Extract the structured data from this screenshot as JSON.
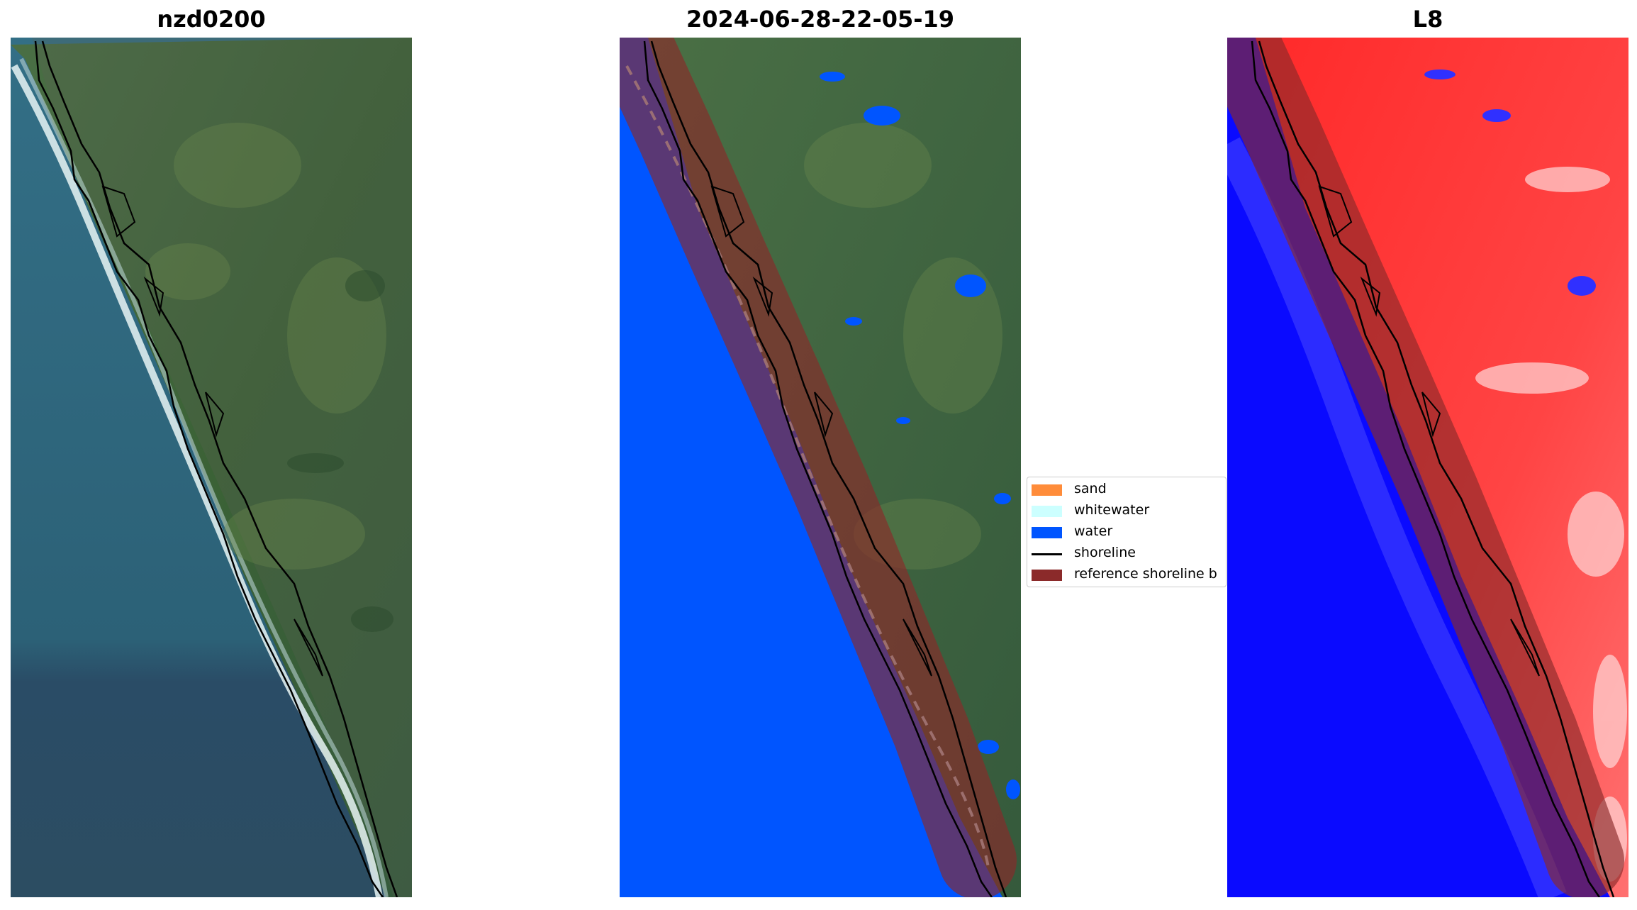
{
  "panels": [
    {
      "title": "nzd0200",
      "kind": "rgb"
    },
    {
      "title": "2024-06-28-22-05-19",
      "kind": "classified"
    },
    {
      "title": "L8",
      "kind": "index"
    }
  ],
  "legend": {
    "items": [
      {
        "label": "sand",
        "color": "#ff8c3a",
        "type": "patch"
      },
      {
        "label": "whitewater",
        "color": "#ccffff",
        "type": "patch"
      },
      {
        "label": "water",
        "color": "#0055ff",
        "type": "patch"
      },
      {
        "label": "shoreline",
        "color": "#000000",
        "type": "line"
      },
      {
        "label": "reference shoreline b",
        "color": "#8b2a2a",
        "type": "patch"
      }
    ]
  },
  "colors": {
    "ocean_rgb": "#2e6a80",
    "land_rgb": "#3f6b3a",
    "water_class": "#0055ff",
    "buffer": "#8b2a2a",
    "index_land": "#ff2020",
    "index_water": "#0000ff"
  }
}
